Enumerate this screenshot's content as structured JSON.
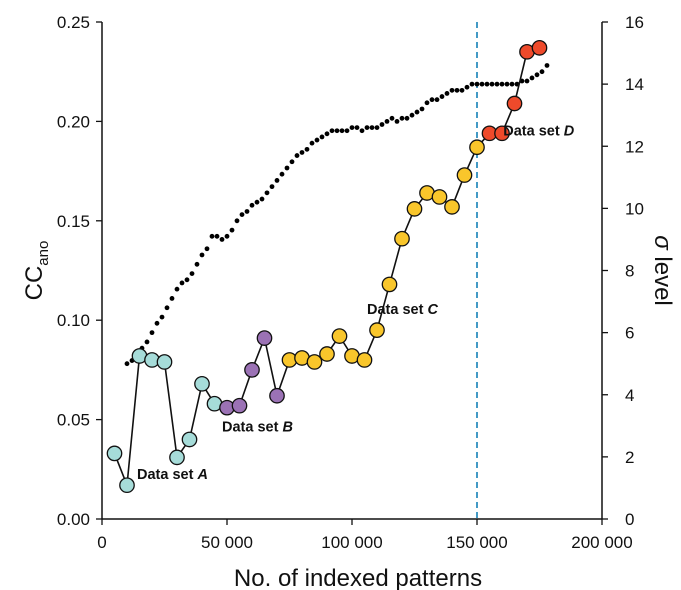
{
  "chart_data": {
    "type": "scatter",
    "xlabel": "No. of indexed patterns",
    "ylabel": {
      "main": "CC",
      "sub": "ano"
    },
    "ylabel_right": {
      "symbol": "σ",
      "rest": " level"
    },
    "xlim": [
      0,
      200000
    ],
    "ylim": [
      0,
      0.25
    ],
    "ylim_right": [
      0,
      16
    ],
    "x_ticks": [
      {
        "value": 0,
        "label": "0"
      },
      {
        "value": 50000,
        "label": "50 000"
      },
      {
        "value": 100000,
        "label": "100 000"
      },
      {
        "value": 150000,
        "label": "150 000"
      },
      {
        "value": 200000,
        "label": "200 000"
      }
    ],
    "y_ticks": [
      {
        "value": 0,
        "label": "0.00"
      },
      {
        "value": 0.05,
        "label": "0.05"
      },
      {
        "value": 0.1,
        "label": "0.10"
      },
      {
        "value": 0.15,
        "label": "0.15"
      },
      {
        "value": 0.2,
        "label": "0.20"
      },
      {
        "value": 0.25,
        "label": "0.25"
      }
    ],
    "y_ticks_right": [
      {
        "value": 0,
        "label": "0"
      },
      {
        "value": 2,
        "label": "2"
      },
      {
        "value": 4,
        "label": "4"
      },
      {
        "value": 6,
        "label": "6"
      },
      {
        "value": 8,
        "label": "8"
      },
      {
        "value": 10,
        "label": "10"
      },
      {
        "value": 12,
        "label": "12"
      },
      {
        "value": 14,
        "label": "14"
      },
      {
        "value": 16,
        "label": "16"
      }
    ],
    "series": [
      {
        "color": "#a6dcd9",
        "points": [
          [
            5000,
            0.033
          ],
          [
            10000,
            0.017
          ],
          [
            15000,
            0.082
          ],
          [
            20000,
            0.08
          ],
          [
            25000,
            0.079
          ],
          [
            30000,
            0.031
          ],
          [
            35000,
            0.04
          ],
          [
            40000,
            0.068
          ],
          [
            45000,
            0.058
          ]
        ]
      },
      {
        "color": "#9b72b5",
        "points": [
          [
            50000,
            0.056
          ],
          [
            55000,
            0.057
          ],
          [
            60000,
            0.075
          ],
          [
            65000,
            0.091
          ],
          [
            70000,
            0.062
          ]
        ]
      },
      {
        "color": "#f9c62b",
        "points": [
          [
            75000,
            0.08
          ],
          [
            80000,
            0.081
          ],
          [
            85000,
            0.079
          ],
          [
            90000,
            0.083
          ],
          [
            95000,
            0.092
          ],
          [
            100000,
            0.082
          ],
          [
            105000,
            0.08
          ],
          [
            110000,
            0.095
          ],
          [
            115000,
            0.118
          ],
          [
            120000,
            0.141
          ],
          [
            125000,
            0.156
          ],
          [
            130000,
            0.164
          ],
          [
            135000,
            0.162
          ],
          [
            140000,
            0.157
          ],
          [
            145000,
            0.173
          ],
          [
            150000,
            0.187
          ]
        ]
      },
      {
        "color": "#ee4a2b",
        "points": [
          [
            155000,
            0.194
          ],
          [
            160000,
            0.194
          ],
          [
            165000,
            0.209
          ],
          [
            170000,
            0.235
          ],
          [
            175000,
            0.237
          ]
        ]
      }
    ],
    "sigma_series": {
      "x": [
        10000,
        12000,
        14000,
        16000,
        18000,
        20000,
        22000,
        24000,
        26000,
        28000,
        30000,
        32000,
        34000,
        36000,
        38000,
        40000,
        42000,
        44000,
        46000,
        48000,
        50000,
        52000,
        54000,
        56000,
        58000,
        60000,
        62000,
        64000,
        66000,
        68000,
        70000,
        72000,
        74000,
        76000,
        78000,
        80000,
        82000,
        84000,
        86000,
        88000,
        90000,
        92000,
        94000,
        96000,
        98000,
        100000,
        102000,
        104000,
        106000,
        108000,
        110000,
        112000,
        114000,
        116000,
        118000,
        120000,
        122000,
        124000,
        126000,
        128000,
        130000,
        132000,
        134000,
        136000,
        138000,
        140000,
        142000,
        144000,
        146000,
        148000,
        150000,
        152000,
        154000,
        156000,
        158000,
        160000,
        162000,
        164000,
        166000,
        168000,
        170000,
        172000,
        174000,
        176000,
        178000
      ],
      "y": [
        5.0,
        5.1,
        5.3,
        5.5,
        5.7,
        6.0,
        6.3,
        6.5,
        6.8,
        7.1,
        7.4,
        7.6,
        7.7,
        7.9,
        8.2,
        8.5,
        8.7,
        9.1,
        9.1,
        9.0,
        9.1,
        9.3,
        9.6,
        9.8,
        9.9,
        10.1,
        10.2,
        10.3,
        10.5,
        10.7,
        10.9,
        11.1,
        11.3,
        11.5,
        11.7,
        11.8,
        11.9,
        12.1,
        12.2,
        12.3,
        12.4,
        12.5,
        12.5,
        12.5,
        12.5,
        12.6,
        12.6,
        12.5,
        12.6,
        12.6,
        12.6,
        12.7,
        12.8,
        12.9,
        12.8,
        12.9,
        12.9,
        13.0,
        13.1,
        13.2,
        13.4,
        13.5,
        13.5,
        13.6,
        13.7,
        13.8,
        13.8,
        13.8,
        13.9,
        14.0,
        14.0,
        14.0,
        14.0,
        14.0,
        14.0,
        14.0,
        14.0,
        14.0,
        14.0,
        14.1,
        14.1,
        14.2,
        14.3,
        14.4,
        14.6
      ]
    },
    "vline": {
      "x": 150000,
      "color": "#2f8fbf"
    },
    "annotations": [
      {
        "prefix": "Data set ",
        "letter": "A",
        "x": 14000,
        "y": 0.02
      },
      {
        "prefix": "Data set ",
        "letter": "B",
        "x": 48000,
        "y": 0.044
      },
      {
        "prefix": "Data set ",
        "letter": "C",
        "x": 106000,
        "y": 0.103
      },
      {
        "prefix": "Data set ",
        "letter": "D",
        "x": 160500,
        "y": 0.193
      }
    ],
    "grid": false,
    "legend": "none"
  }
}
